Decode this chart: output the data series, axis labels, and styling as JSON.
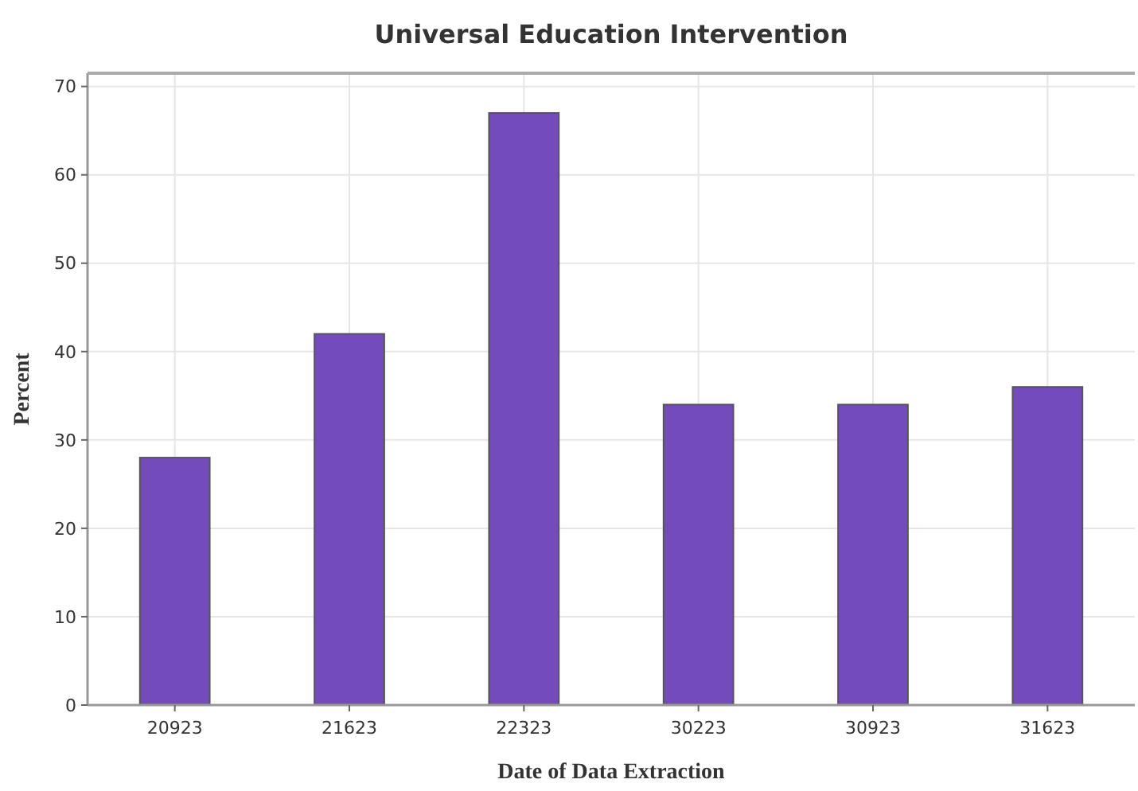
{
  "chart_data": {
    "type": "bar",
    "title": "Universal Education Intervention",
    "xlabel": "Date of Data Extraction",
    "ylabel": "Percent",
    "categories": [
      "20923",
      "21623",
      "22323",
      "30223",
      "30923",
      "31623"
    ],
    "values": [
      28,
      42,
      67,
      34,
      34,
      36
    ],
    "color": "#744bbb",
    "ylim": [
      0,
      71.5
    ],
    "yticks": [
      0,
      10,
      20,
      30,
      40,
      50,
      60,
      70
    ],
    "grid": true
  }
}
